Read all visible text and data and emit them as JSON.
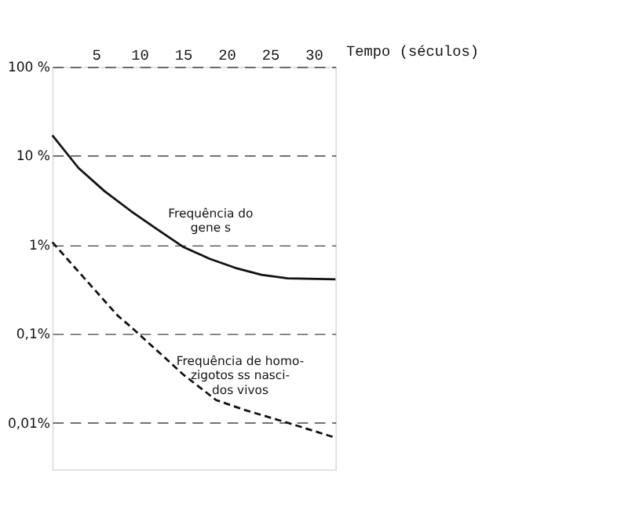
{
  "chart_data": {
    "type": "line",
    "xlabel": "Tempo (séculos)",
    "xlim": [
      0,
      32.5
    ],
    "xticks": [
      5,
      10,
      15,
      20,
      25,
      30
    ],
    "ylim": [
      0.003,
      100
    ],
    "log": "y",
    "yticks": [
      {
        "value": 100,
        "label": "100 %"
      },
      {
        "value": 10,
        "label": "10 %"
      },
      {
        "value": 1,
        "label": "1%"
      },
      {
        "value": 0.1,
        "label": "0,1%"
      },
      {
        "value": 0.01,
        "label": "0,01%"
      }
    ],
    "grid": "y",
    "marker": "none",
    "series": [
      {
        "color": "#111111",
        "line_style": "solid",
        "x": [
          0,
          3,
          6,
          9,
          12,
          15,
          18,
          21,
          24,
          27,
          32.5
        ],
        "values": [
          17,
          7.3,
          4,
          2.4,
          1.5,
          0.95,
          0.7,
          0.55,
          0.46,
          0.42,
          0.41
        ]
      },
      {
        "color": "#111111",
        "line_style": "dashed",
        "x": [
          0,
          3,
          7.5,
          9,
          12,
          15,
          18.8,
          22,
          27,
          32.5
        ],
        "values": [
          1.07,
          0.5,
          0.16,
          0.12,
          0.065,
          0.035,
          0.018,
          0.014,
          0.01,
          0.0068
        ]
      }
    ],
    "annotations": [
      "Frequência do\ngene s",
      "Frequência de homo-\nzigotos ss nasci-\ndos vivos"
    ]
  }
}
